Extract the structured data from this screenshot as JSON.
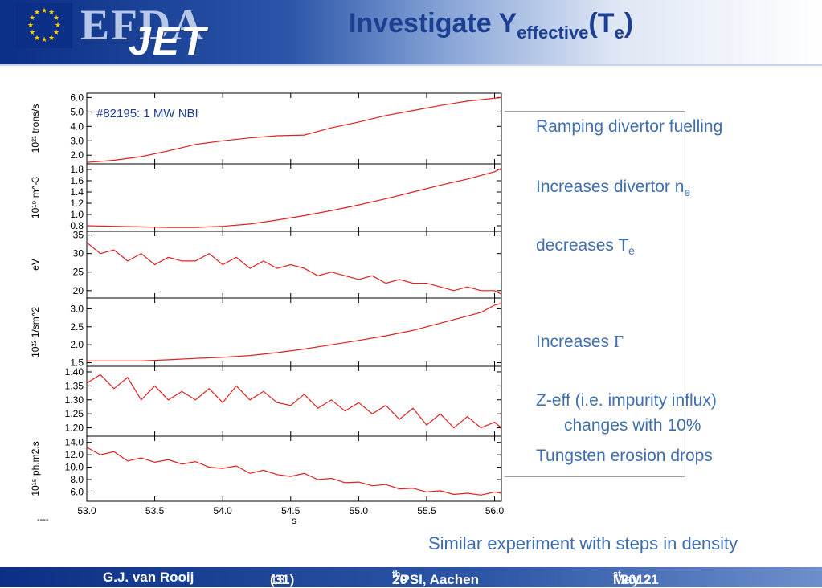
{
  "header": {
    "logo_text": "EFDA",
    "jet_text": "JET",
    "title_main": "Investigate Y",
    "title_sub": "effective",
    "title_paren_open": "(T",
    "title_paren_sub": "e",
    "title_paren_close": ")"
  },
  "annotations": {
    "fuelling": "Ramping divertor fuelling",
    "ne_text": "Increases divertor n",
    "ne_sub": "e",
    "te_text": "decreases T",
    "te_sub": "e",
    "gamma_text": "Increases ",
    "gamma_symbol": "Γ",
    "zeff_line1": "Z-eff (i.e. impurity influx)",
    "zeff_line2": "changes with 10%",
    "tungsten": "Tungsten erosion drops",
    "similar": "Similar experiment with steps in density"
  },
  "footer": {
    "author": "G.J. van Rooij",
    "page_num": "13",
    "page_total": "(31)",
    "conf_pre": "20",
    "conf_sup": "th",
    "conf_post": " PSI, Aachen",
    "date_pre": "May 21",
    "date_sup": "st",
    "date_post": " 2012"
  },
  "colors": {
    "accent": "#3f6fb0",
    "header_blue": "#0b2f86",
    "trace": "#e02020"
  },
  "chart_data": {
    "type": "line",
    "shot_label": "#82195: 1 MW NBI",
    "xlabel": "s",
    "x_ticks": [
      "53.0",
      "53.5",
      "54.0",
      "54.5",
      "55.0",
      "55.5",
      "56.0"
    ],
    "xlim": [
      53.0,
      56.05
    ],
    "footnote": "----",
    "panels": [
      {
        "ylabel": "10²¹ trons/s",
        "ylim": [
          1.4,
          6.3
        ],
        "yticks": [
          "6.0",
          "5.0",
          "4.0",
          "3.0",
          "2.0"
        ],
        "x": [
          53.0,
          53.2,
          53.4,
          53.6,
          53.8,
          54.0,
          54.2,
          54.4,
          54.6,
          54.8,
          55.0,
          55.2,
          55.4,
          55.6,
          55.8,
          56.0,
          56.05
        ],
        "values": [
          1.5,
          1.65,
          1.9,
          2.3,
          2.75,
          3.0,
          3.2,
          3.35,
          3.4,
          3.9,
          4.3,
          4.75,
          5.1,
          5.45,
          5.75,
          5.95,
          6.0
        ]
      },
      {
        "ylabel": "10¹⁹ m^-3",
        "ylim": [
          0.7,
          1.9
        ],
        "yticks": [
          "1.8",
          "1.6",
          "1.4",
          "1.2",
          "1.0",
          "0.8"
        ],
        "x": [
          53.0,
          53.2,
          53.4,
          53.6,
          53.8,
          54.0,
          54.2,
          54.4,
          54.6,
          54.8,
          55.0,
          55.2,
          55.4,
          55.6,
          55.8,
          56.0,
          56.05
        ],
        "values": [
          0.8,
          0.79,
          0.78,
          0.77,
          0.77,
          0.79,
          0.83,
          0.9,
          0.98,
          1.07,
          1.17,
          1.28,
          1.4,
          1.52,
          1.63,
          1.76,
          1.82
        ]
      },
      {
        "ylabel": "eV",
        "ylim": [
          18,
          36
        ],
        "yticks": [
          "35",
          "30",
          "25",
          "20"
        ],
        "x": [
          53.0,
          53.1,
          53.2,
          53.3,
          53.4,
          53.5,
          53.6,
          53.7,
          53.8,
          53.9,
          54.0,
          54.1,
          54.2,
          54.3,
          54.4,
          54.5,
          54.6,
          54.7,
          54.8,
          54.9,
          55.0,
          55.1,
          55.2,
          55.3,
          55.4,
          55.5,
          55.6,
          55.7,
          55.8,
          55.9,
          56.0,
          56.05
        ],
        "values": [
          33,
          30,
          31,
          28,
          30,
          27,
          29,
          28,
          28,
          30,
          27,
          29,
          26,
          28,
          26,
          27,
          26,
          24,
          25,
          24,
          23,
          24,
          22,
          23,
          22,
          22,
          21,
          20,
          21,
          20,
          20,
          19
        ]
      },
      {
        "ylabel": "10²² 1/sm^2",
        "ylim": [
          1.4,
          3.3
        ],
        "yticks": [
          "3.0",
          "2.5",
          "2.0",
          "1.5"
        ],
        "x": [
          53.0,
          53.2,
          53.4,
          53.6,
          53.8,
          54.0,
          54.2,
          54.4,
          54.6,
          54.8,
          55.0,
          55.2,
          55.4,
          55.6,
          55.8,
          55.9,
          56.0,
          56.05
        ],
        "values": [
          1.55,
          1.55,
          1.55,
          1.58,
          1.62,
          1.65,
          1.7,
          1.78,
          1.88,
          2.0,
          2.12,
          2.25,
          2.4,
          2.6,
          2.8,
          2.9,
          3.1,
          3.15
        ]
      },
      {
        "ylabel": "",
        "ylim": [
          1.17,
          1.42
        ],
        "yticks": [
          "1.40",
          "1.35",
          "1.30",
          "1.25",
          "1.20"
        ],
        "x": [
          53.0,
          53.1,
          53.2,
          53.3,
          53.4,
          53.5,
          53.6,
          53.7,
          53.8,
          53.9,
          54.0,
          54.1,
          54.2,
          54.3,
          54.4,
          54.5,
          54.6,
          54.7,
          54.8,
          54.9,
          55.0,
          55.1,
          55.2,
          55.3,
          55.4,
          55.5,
          55.6,
          55.7,
          55.8,
          55.9,
          56.0,
          56.05
        ],
        "values": [
          1.36,
          1.39,
          1.34,
          1.38,
          1.3,
          1.35,
          1.3,
          1.33,
          1.3,
          1.34,
          1.29,
          1.35,
          1.3,
          1.33,
          1.29,
          1.28,
          1.32,
          1.27,
          1.3,
          1.26,
          1.29,
          1.25,
          1.28,
          1.23,
          1.27,
          1.21,
          1.25,
          1.2,
          1.24,
          1.2,
          1.22,
          1.2
        ]
      },
      {
        "ylabel": "10¹⁵ ph.m2.s",
        "ylim": [
          4.5,
          15
        ],
        "yticks": [
          "14.0",
          "12.0",
          "10.0",
          "8.0",
          "6.0"
        ],
        "x": [
          53.0,
          53.1,
          53.2,
          53.3,
          53.4,
          53.5,
          53.6,
          53.7,
          53.8,
          53.9,
          54.0,
          54.1,
          54.2,
          54.3,
          54.4,
          54.5,
          54.6,
          54.7,
          54.8,
          54.9,
          55.0,
          55.1,
          55.2,
          55.3,
          55.4,
          55.5,
          55.6,
          55.7,
          55.8,
          55.9,
          56.0,
          56.05
        ],
        "values": [
          13.2,
          12.0,
          12.5,
          11.0,
          11.5,
          10.8,
          11.2,
          10.5,
          10.9,
          10.0,
          9.8,
          10.2,
          9.0,
          9.5,
          8.8,
          8.5,
          9.0,
          8.0,
          8.2,
          7.5,
          7.6,
          7.0,
          7.2,
          6.5,
          6.6,
          6.0,
          6.2,
          5.6,
          5.8,
          5.5,
          6.0,
          5.8
        ]
      }
    ]
  }
}
